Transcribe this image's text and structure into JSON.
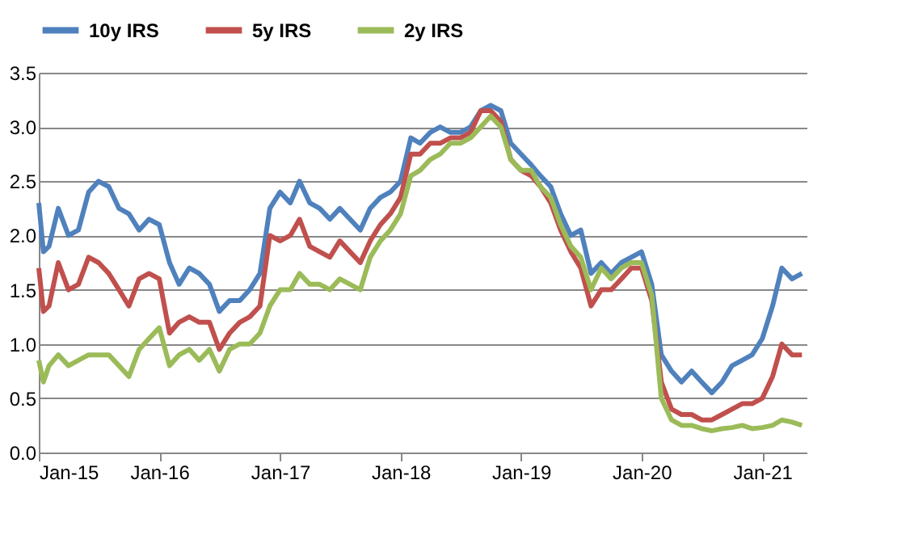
{
  "chart_data": {
    "type": "line",
    "legend": "top",
    "grid": "y",
    "line_style": "solid",
    "x": [
      "2015-01-01",
      "2015-01-15",
      "2015-02-01",
      "2015-03-01",
      "2015-04-01",
      "2015-05-01",
      "2015-06-01",
      "2015-07-01",
      "2015-08-01",
      "2015-09-01",
      "2015-10-01",
      "2015-11-01",
      "2015-12-01",
      "2016-01-01",
      "2016-02-01",
      "2016-03-01",
      "2016-04-01",
      "2016-05-01",
      "2016-06-01",
      "2016-07-01",
      "2016-08-01",
      "2016-09-01",
      "2016-10-01",
      "2016-11-01",
      "2016-12-01",
      "2017-01-01",
      "2017-02-01",
      "2017-03-01",
      "2017-04-01",
      "2017-05-01",
      "2017-06-01",
      "2017-07-01",
      "2017-08-01",
      "2017-09-01",
      "2017-10-01",
      "2017-11-01",
      "2017-12-01",
      "2018-01-01",
      "2018-02-01",
      "2018-03-01",
      "2018-04-01",
      "2018-05-01",
      "2018-06-01",
      "2018-07-01",
      "2018-08-01",
      "2018-09-01",
      "2018-10-01",
      "2018-11-01",
      "2018-12-01",
      "2019-01-01",
      "2019-02-01",
      "2019-03-01",
      "2019-04-01",
      "2019-05-01",
      "2019-06-01",
      "2019-07-01",
      "2019-08-01",
      "2019-09-01",
      "2019-10-01",
      "2019-11-01",
      "2019-12-01",
      "2020-01-01",
      "2020-02-01",
      "2020-03-01",
      "2020-04-01",
      "2020-05-01",
      "2020-06-01",
      "2020-07-01",
      "2020-08-01",
      "2020-09-01",
      "2020-10-01",
      "2020-11-01",
      "2020-12-01",
      "2021-01-01",
      "2021-02-01",
      "2021-03-01",
      "2021-04-01",
      "2021-05-01"
    ],
    "series": [
      {
        "name": "10y IRS",
        "color": "#4f81bd",
        "values": [
          2.3,
          1.85,
          1.9,
          2.25,
          2.0,
          2.05,
          2.4,
          2.5,
          2.45,
          2.25,
          2.2,
          2.05,
          2.15,
          2.1,
          1.75,
          1.55,
          1.7,
          1.65,
          1.55,
          1.3,
          1.4,
          1.4,
          1.5,
          1.65,
          2.25,
          2.4,
          2.3,
          2.5,
          2.3,
          2.25,
          2.15,
          2.25,
          2.15,
          2.05,
          2.25,
          2.35,
          2.4,
          2.5,
          2.9,
          2.85,
          2.95,
          3.0,
          2.95,
          2.95,
          3.0,
          3.15,
          3.2,
          3.15,
          2.85,
          2.75,
          2.65,
          2.55,
          2.45,
          2.2,
          2.0,
          2.05,
          1.65,
          1.75,
          1.65,
          1.75,
          1.8,
          1.85,
          1.55,
          0.9,
          0.75,
          0.65,
          0.75,
          0.65,
          0.55,
          0.65,
          0.8,
          0.85,
          0.9,
          1.05,
          1.35,
          1.7,
          1.6,
          1.65
        ]
      },
      {
        "name": "5y IRS",
        "color": "#c0504d",
        "values": [
          1.7,
          1.3,
          1.35,
          1.75,
          1.5,
          1.55,
          1.8,
          1.75,
          1.65,
          1.5,
          1.35,
          1.6,
          1.65,
          1.6,
          1.1,
          1.2,
          1.25,
          1.2,
          1.2,
          0.95,
          1.1,
          1.2,
          1.25,
          1.35,
          2.0,
          1.95,
          2.0,
          2.15,
          1.9,
          1.85,
          1.8,
          1.95,
          1.85,
          1.75,
          1.95,
          2.1,
          2.2,
          2.35,
          2.75,
          2.75,
          2.85,
          2.85,
          2.9,
          2.9,
          2.95,
          3.15,
          3.15,
          3.05,
          2.7,
          2.6,
          2.55,
          2.45,
          2.3,
          2.05,
          1.85,
          1.7,
          1.35,
          1.5,
          1.5,
          1.6,
          1.7,
          1.7,
          1.4,
          0.65,
          0.4,
          0.35,
          0.35,
          0.3,
          0.3,
          0.35,
          0.4,
          0.45,
          0.45,
          0.5,
          0.7,
          1.0,
          0.9,
          0.9
        ]
      },
      {
        "name": "2y IRS",
        "color": "#9bbb59",
        "values": [
          0.85,
          0.65,
          0.8,
          0.9,
          0.8,
          0.85,
          0.9,
          0.9,
          0.9,
          0.8,
          0.7,
          0.95,
          1.05,
          1.15,
          0.8,
          0.9,
          0.95,
          0.85,
          0.95,
          0.75,
          0.95,
          1.0,
          1.0,
          1.1,
          1.35,
          1.5,
          1.5,
          1.65,
          1.55,
          1.55,
          1.5,
          1.6,
          1.55,
          1.5,
          1.8,
          1.95,
          2.05,
          2.2,
          2.55,
          2.6,
          2.7,
          2.75,
          2.85,
          2.85,
          2.9,
          3.0,
          3.1,
          3.0,
          2.7,
          2.6,
          2.6,
          2.45,
          2.35,
          2.1,
          1.9,
          1.8,
          1.5,
          1.7,
          1.6,
          1.7,
          1.75,
          1.75,
          1.45,
          0.5,
          0.3,
          0.25,
          0.25,
          0.22,
          0.2,
          0.22,
          0.23,
          0.25,
          0.22,
          0.23,
          0.25,
          0.3,
          0.28,
          0.25
        ]
      }
    ],
    "xlim": [
      "2015-01-01",
      "2021-05-15"
    ],
    "xticks": [
      {
        "value": "2015-01-01",
        "label": "Jan-15"
      },
      {
        "value": "2016-01-01",
        "label": "Jan-16"
      },
      {
        "value": "2017-01-01",
        "label": "Jan-17"
      },
      {
        "value": "2018-01-01",
        "label": "Jan-18"
      },
      {
        "value": "2019-01-01",
        "label": "Jan-19"
      },
      {
        "value": "2020-01-01",
        "label": "Jan-20"
      },
      {
        "value": "2021-01-01",
        "label": "Jan-21"
      }
    ],
    "ylim": [
      0,
      3.5
    ],
    "yticks": [
      {
        "value": 0,
        "label": "0.0"
      },
      {
        "value": 0.5,
        "label": "0.5"
      },
      {
        "value": 1,
        "label": "1.0"
      },
      {
        "value": 1.5,
        "label": "1.5"
      },
      {
        "value": 2,
        "label": "2.0"
      },
      {
        "value": 2.5,
        "label": "2.5"
      },
      {
        "value": 3,
        "label": "3.0"
      },
      {
        "value": 3.5,
        "label": "3.5"
      }
    ]
  }
}
